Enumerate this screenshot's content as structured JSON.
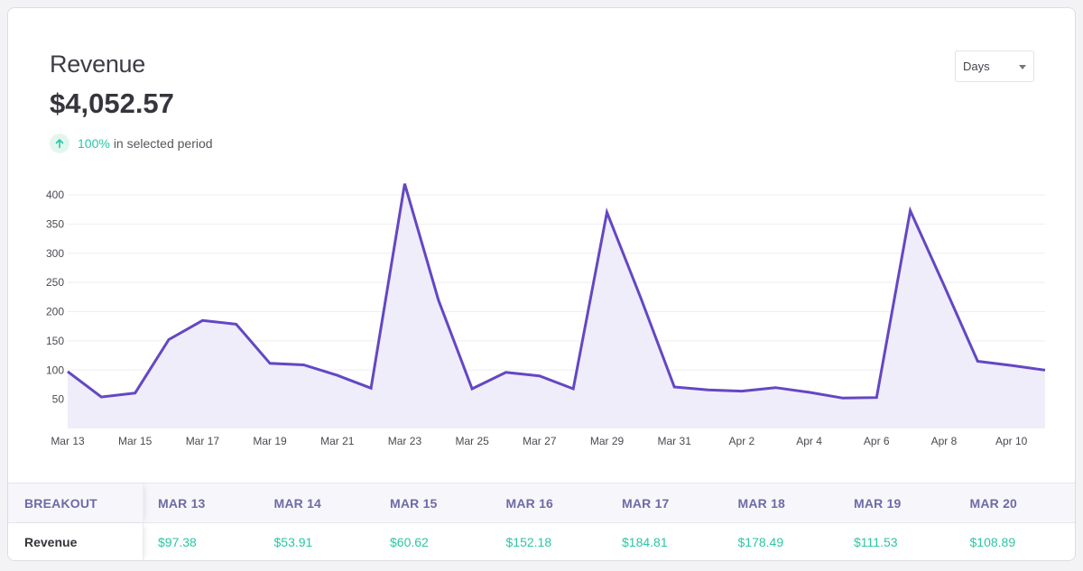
{
  "header": {
    "title": "Revenue",
    "total": "$4,052.57",
    "change_pct": "100%",
    "change_text": "in selected period"
  },
  "period_select": {
    "value": "Days"
  },
  "colors": {
    "line": "#6347c4",
    "fill": "#efedf9",
    "accent_green": "#2bc6a3"
  },
  "chart_data": {
    "type": "area",
    "x": [
      "Mar 13",
      "Mar 14",
      "Mar 15",
      "Mar 16",
      "Mar 17",
      "Mar 18",
      "Mar 19",
      "Mar 20",
      "Mar 21",
      "Mar 22",
      "Mar 23",
      "Mar 24",
      "Mar 25",
      "Mar 26",
      "Mar 27",
      "Mar 28",
      "Mar 29",
      "Mar 30",
      "Mar 31",
      "Apr 1",
      "Apr 2",
      "Apr 3",
      "Apr 4",
      "Apr 5",
      "Apr 6",
      "Apr 7",
      "Apr 8",
      "Apr 9",
      "Apr 10",
      "Apr 11"
    ],
    "series": [
      {
        "values": [
          97.38,
          53.91,
          60.62,
          152.18,
          184.81,
          178.49,
          111.53,
          108.89,
          91,
          69,
          419,
          220,
          68,
          96,
          90,
          68,
          370,
          224,
          71,
          66,
          64,
          70,
          62,
          52,
          53,
          373,
          245,
          115,
          108,
          100
        ]
      }
    ],
    "x_tick_labels": [
      "Mar 13",
      "Mar 15",
      "Mar 17",
      "Mar 19",
      "Mar 21",
      "Mar 23",
      "Mar 25",
      "Mar 27",
      "Mar 29",
      "Mar 31",
      "Apr 2",
      "Apr 4",
      "Apr 6",
      "Apr 8",
      "Apr 10"
    ],
    "y_ticks": [
      50,
      100,
      150,
      200,
      250,
      300,
      350,
      400
    ],
    "ylim": [
      0,
      420
    ],
    "grid": true,
    "legend": "none"
  },
  "breakout": {
    "header_label": "BREAKOUT",
    "row_label": "Revenue",
    "columns": [
      {
        "date": "MAR 13",
        "value": "$97.38"
      },
      {
        "date": "MAR 14",
        "value": "$53.91"
      },
      {
        "date": "MAR 15",
        "value": "$60.62"
      },
      {
        "date": "MAR 16",
        "value": "$152.18"
      },
      {
        "date": "MAR 17",
        "value": "$184.81"
      },
      {
        "date": "MAR 18",
        "value": "$178.49"
      },
      {
        "date": "MAR 19",
        "value": "$111.53"
      },
      {
        "date": "MAR 20",
        "value": "$108.89"
      }
    ]
  }
}
